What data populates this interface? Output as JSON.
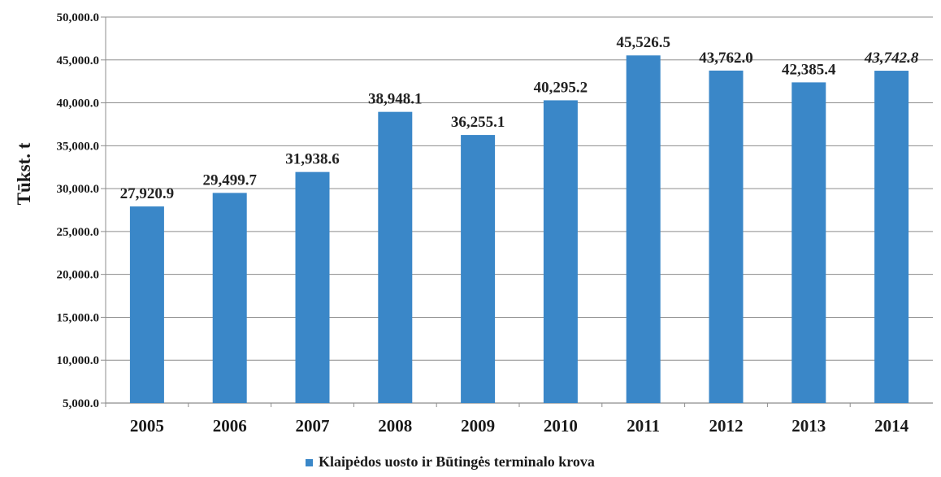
{
  "chart_data": {
    "type": "bar",
    "title": "",
    "xlabel": "",
    "ylabel": "Tūkst. t",
    "ylim": [
      5000,
      50000
    ],
    "ytick_step": 5000,
    "grid": "y-major",
    "legend_position": "bottom-center",
    "bar_color": "#3a87c8",
    "highlight_color": "#e8474f",
    "label_color": "#222222",
    "categories": [
      "2005",
      "2006",
      "2007",
      "2008",
      "2009",
      "2010",
      "2011",
      "2012",
      "2013",
      "2014"
    ],
    "series": [
      {
        "name": "Klaipėdos uosto ir Būtingės terminalo krova",
        "values": [
          27920.9,
          29499.7,
          31938.6,
          38948.1,
          36255.1,
          40295.2,
          45526.5,
          43762.0,
          42385.4,
          43742.8
        ],
        "labels": [
          "27,920.9",
          "29,499.7",
          "31,938.6",
          "38,948.1",
          "36,255.1",
          "40,295.2",
          "45,526.5",
          "43,762.0",
          "42,385.4",
          "43,742.8"
        ],
        "label_styles": [
          "normal",
          "normal",
          "normal",
          "normal",
          "normal",
          "normal",
          "highlight",
          "normal",
          "normal",
          "highlight-italic"
        ]
      }
    ],
    "yticks": [
      "5,000.0",
      "10,000.0",
      "15,000.0",
      "20,000.0",
      "25,000.0",
      "30,000.0",
      "35,000.0",
      "40,000.0",
      "45,000.0",
      "50,000.0"
    ]
  }
}
